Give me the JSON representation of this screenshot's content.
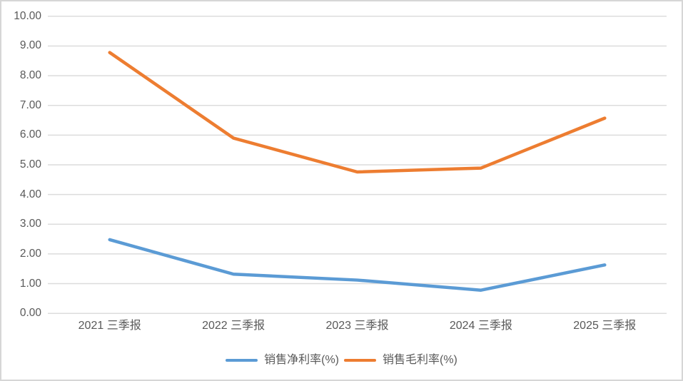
{
  "chart_data": {
    "type": "line",
    "categories": [
      "2021 三季报",
      "2022 三季报",
      "2023 三季报",
      "2024 三季报",
      "2025 三季报"
    ],
    "series": [
      {
        "name": "销售净利率(%)",
        "color": "#5B9BD5",
        "values": [
          2.48,
          1.32,
          1.12,
          0.78,
          1.63
        ]
      },
      {
        "name": "销售毛利率(%)",
        "color": "#ED7D31",
        "values": [
          8.78,
          5.9,
          4.76,
          4.89,
          6.57
        ]
      }
    ],
    "title": "",
    "xlabel": "",
    "ylabel": "",
    "ylim": [
      0,
      10
    ],
    "ytick_step": 1,
    "ytick_labels": [
      "0.00",
      "1.00",
      "2.00",
      "3.00",
      "4.00",
      "5.00",
      "6.00",
      "7.00",
      "8.00",
      "9.00",
      "10.00"
    ],
    "grid": true,
    "legend_position": "bottom",
    "colors": {
      "gridline": "#DCDCDC",
      "axis_text": "#595959",
      "border": "#D6D6D6",
      "background": "#FFFFFF"
    }
  }
}
